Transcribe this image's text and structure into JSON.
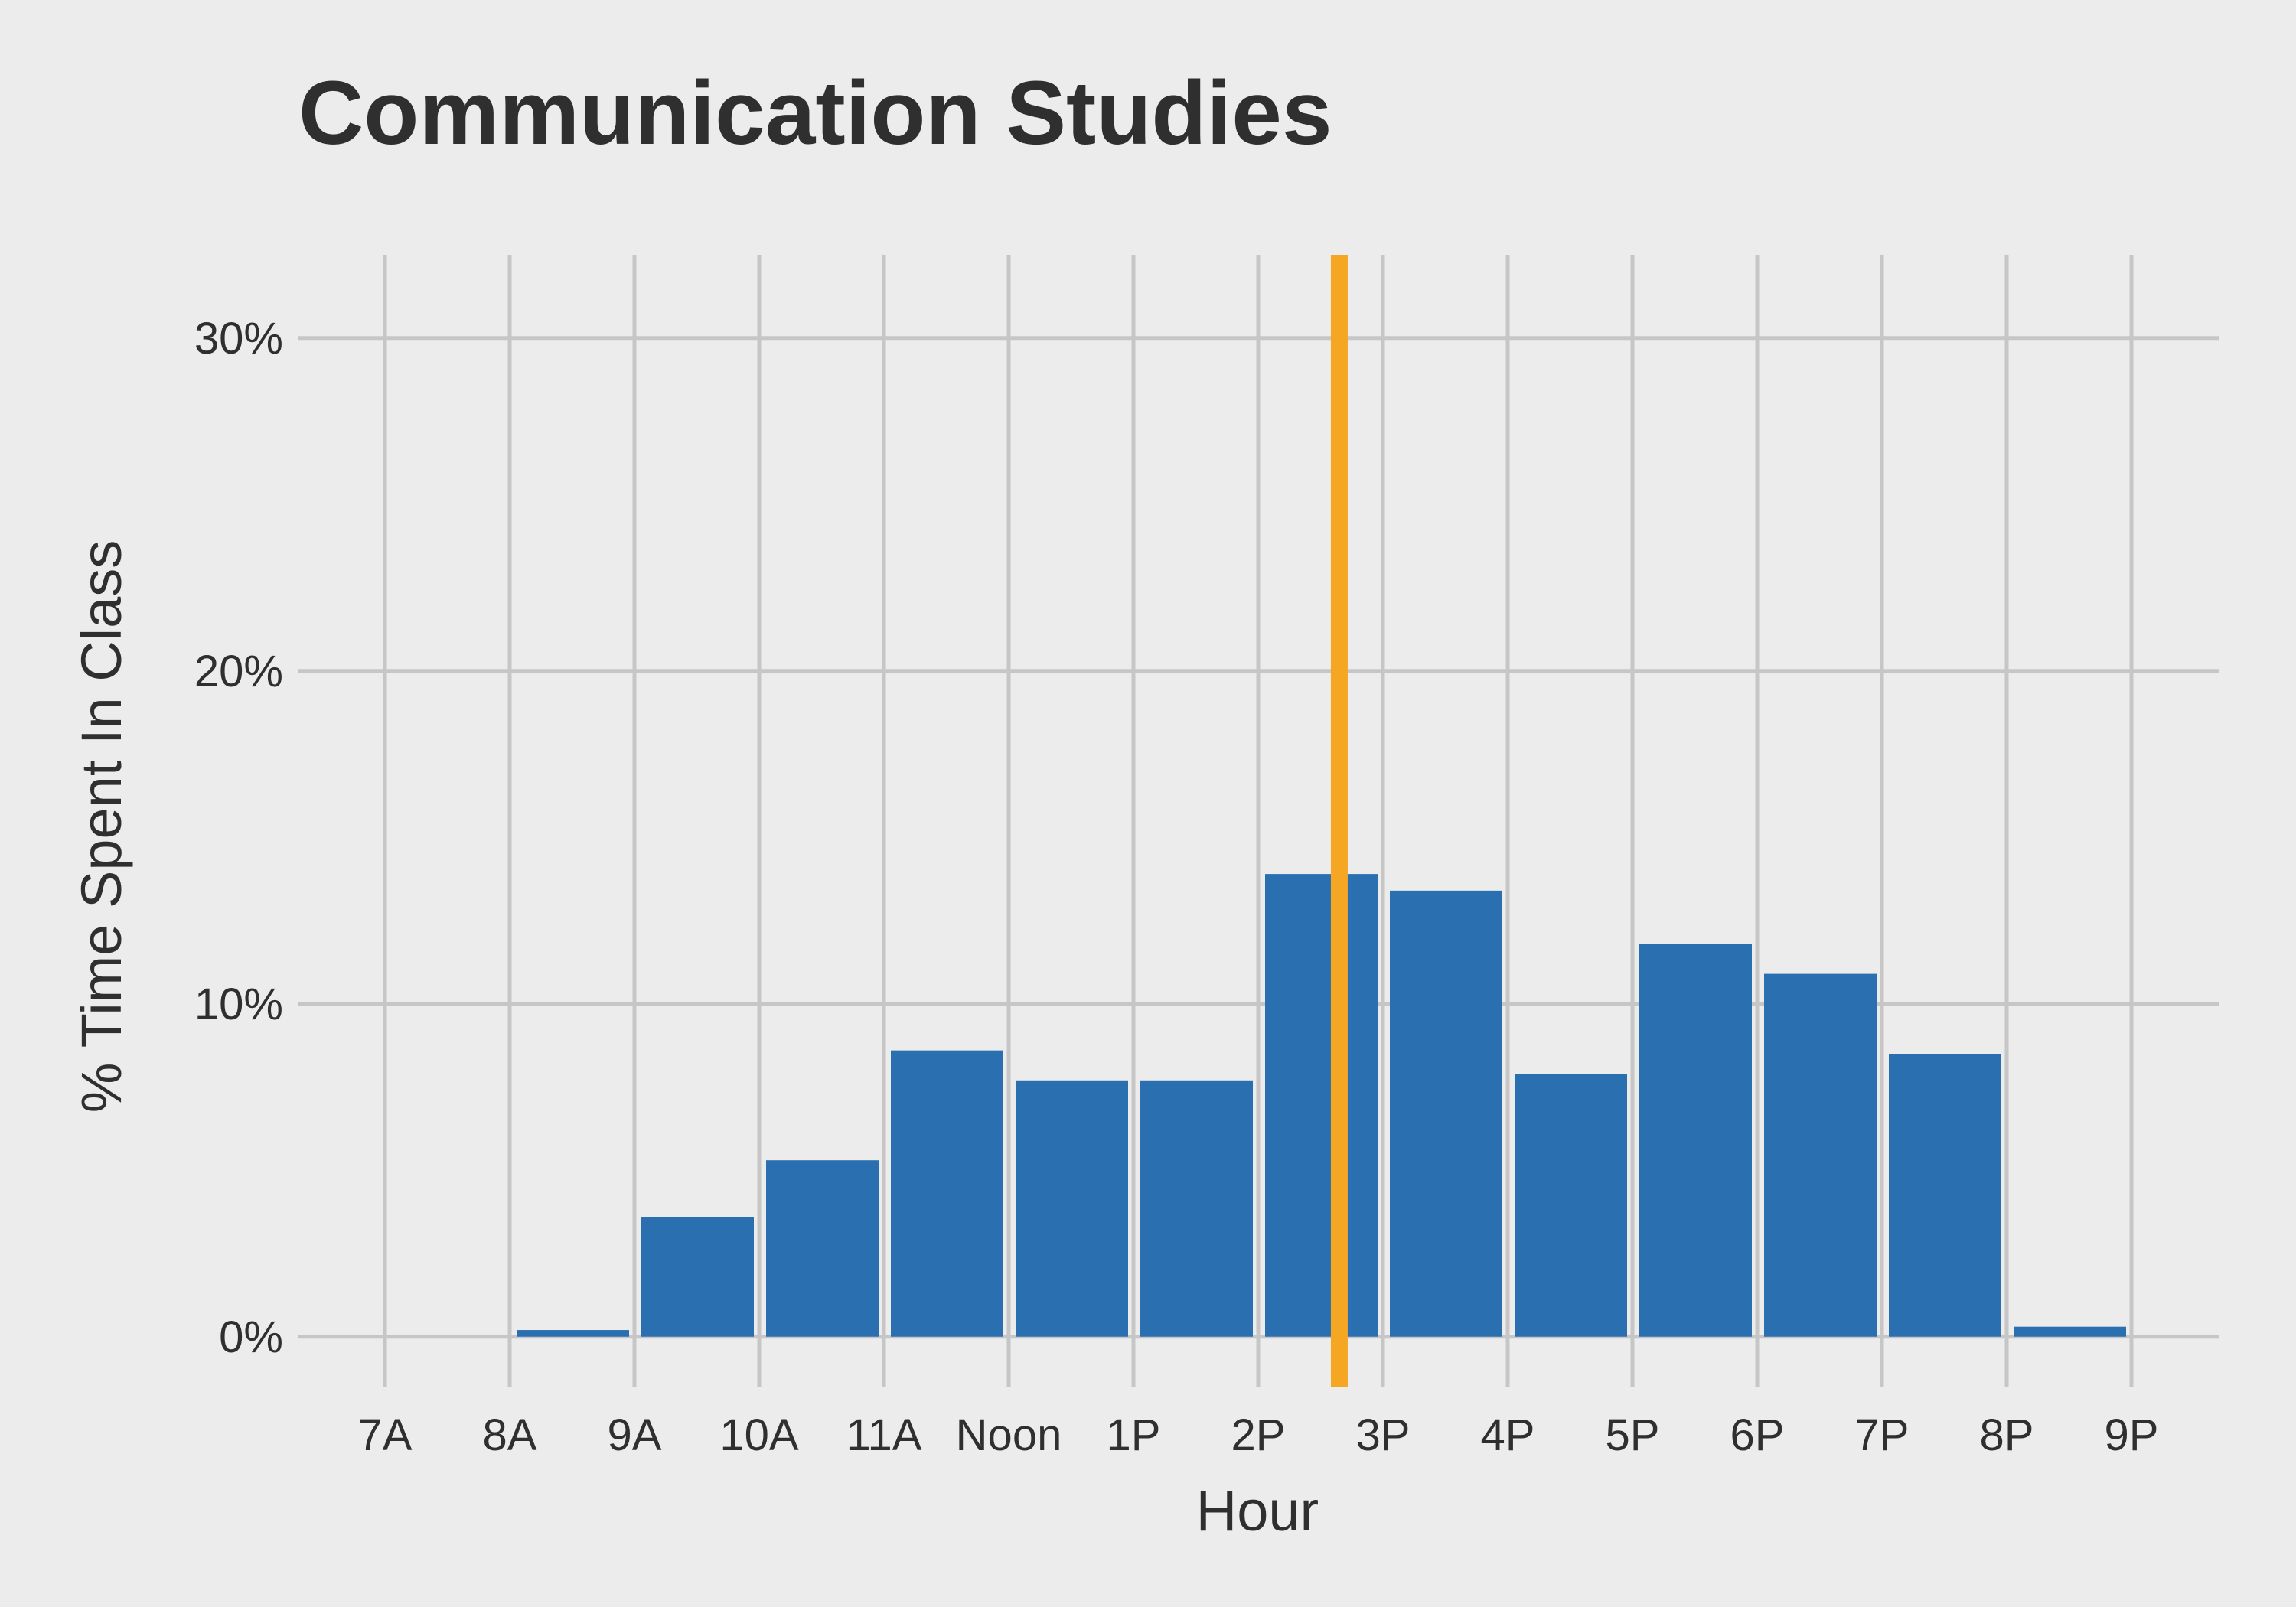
{
  "chart_data": {
    "type": "bar",
    "title": "Communication Studies",
    "xlabel": "Hour",
    "ylabel": "% Time Spent In Class",
    "categories": [
      "7A",
      "8A",
      "9A",
      "10A",
      "11A",
      "Noon",
      "1P",
      "2P",
      "3P",
      "4P",
      "5P",
      "6P",
      "7P",
      "8P",
      "9P"
    ],
    "values": [
      0,
      0.2,
      3.6,
      5.3,
      8.6,
      7.7,
      7.7,
      13.9,
      13.4,
      7.9,
      11.8,
      10.9,
      8.5,
      0.3,
      0
    ],
    "unit": "%",
    "ylim": [
      -1.5,
      32.5
    ],
    "yticks": [
      0,
      10,
      20,
      30
    ],
    "ytick_labels": [
      "0%",
      "10%",
      "20%",
      "30%"
    ],
    "reference_line": {
      "x_hours": 14.65,
      "color": "#f5a623"
    },
    "bar_color": "#2a6fb0",
    "grid": true,
    "legend": "none"
  }
}
